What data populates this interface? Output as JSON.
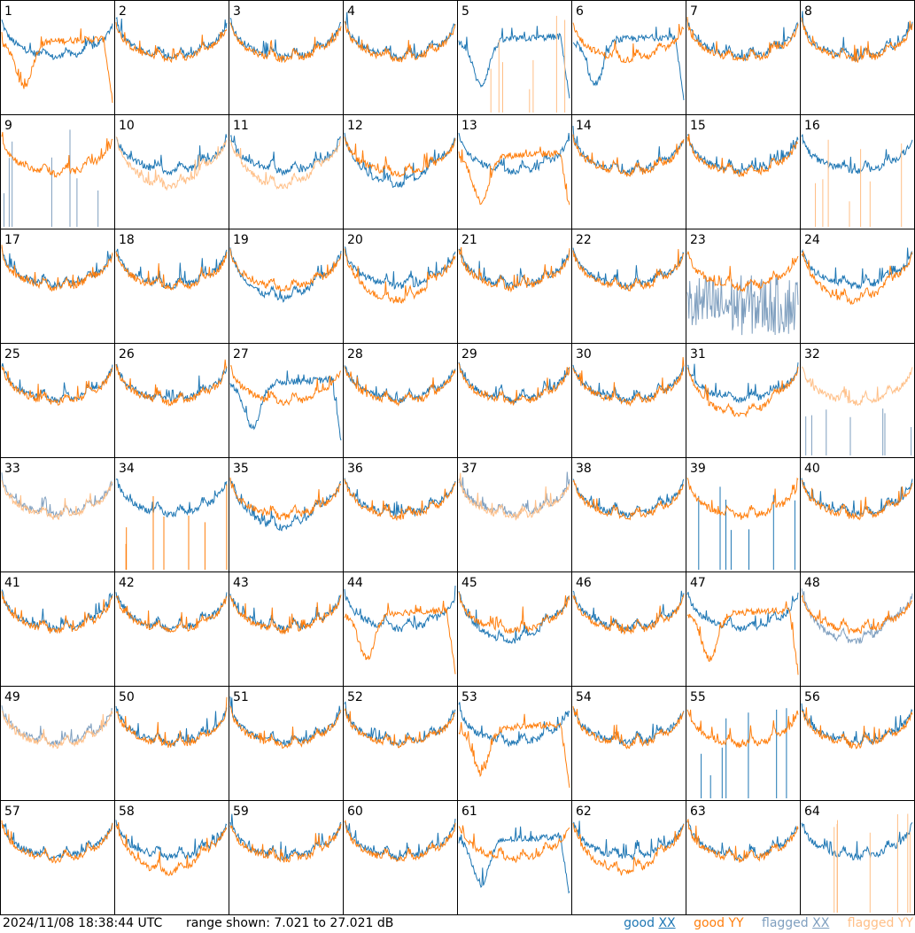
{
  "timestamp": "2024/11/08 18:38:44 UTC",
  "range_label": "range shown: 7.021 to 27.021 dB",
  "legend": [
    {
      "prefix": "good ",
      "pol": "XX",
      "color": "#1f77b4"
    },
    {
      "prefix": "good ",
      "pol": "YY",
      "color": "#ff7f0e"
    },
    {
      "prefix": "flagged ",
      "pol": "XX",
      "color": "#7f9fbf"
    },
    {
      "prefix": "flagged ",
      "pol": "YY",
      "color": "#ffbf87"
    }
  ],
  "chart_data": {
    "type": "line",
    "layout": "8x8 small multiples",
    "panel_labels": [
      "1",
      "2",
      "3",
      "4",
      "5",
      "6",
      "7",
      "8",
      "9",
      "10",
      "11",
      "12",
      "13",
      "14",
      "15",
      "16",
      "17",
      "18",
      "19",
      "20",
      "21",
      "22",
      "23",
      "24",
      "25",
      "26",
      "27",
      "28",
      "29",
      "30",
      "31",
      "32",
      "33",
      "34",
      "35",
      "36",
      "37",
      "38",
      "39",
      "40",
      "41",
      "42",
      "43",
      "44",
      "45",
      "46",
      "47",
      "48",
      "49",
      "50",
      "51",
      "52",
      "53",
      "54",
      "55",
      "56",
      "57",
      "58",
      "59",
      "60",
      "61",
      "62",
      "63",
      "64"
    ],
    "ylim": [
      7.021,
      27.021
    ],
    "yunit": "dB",
    "colors": {
      "good_xx": "#1f77b4",
      "good_yy": "#ff7f0e",
      "flagged_xx": "#7f9fbf",
      "flagged_yy": "#ffbf87"
    },
    "panels": [
      {
        "xx": {
          "shape": "hump",
          "flag": false
        },
        "yy": {
          "shape": "dip",
          "flag": false
        }
      },
      {
        "xx": {
          "shape": "normal",
          "flag": false
        },
        "yy": {
          "shape": "normal",
          "flag": false
        }
      },
      {
        "xx": {
          "shape": "normal",
          "flag": false
        },
        "yy": {
          "shape": "normal",
          "flag": false
        }
      },
      {
        "xx": {
          "shape": "normal",
          "flag": false
        },
        "yy": {
          "shape": "normal",
          "flag": false
        }
      },
      {
        "xx": {
          "shape": "dip",
          "flag": false
        },
        "yy": {
          "shape": "spikes",
          "flag": true
        }
      },
      {
        "xx": {
          "shape": "dip",
          "flag": false
        },
        "yy": {
          "shape": "normal",
          "flag": false
        }
      },
      {
        "xx": {
          "shape": "normal",
          "flag": false
        },
        "yy": {
          "shape": "normal",
          "flag": false
        }
      },
      {
        "xx": {
          "shape": "normal",
          "flag": false
        },
        "yy": {
          "shape": "normal",
          "flag": false
        }
      },
      {
        "xx": {
          "shape": "spikes",
          "flag": true
        },
        "yy": {
          "shape": "normal",
          "flag": false
        }
      },
      {
        "xx": {
          "shape": "normal",
          "flag": false
        },
        "yy": {
          "shape": "low",
          "flag": true
        }
      },
      {
        "xx": {
          "shape": "normal",
          "flag": false
        },
        "yy": {
          "shape": "low",
          "flag": true
        }
      },
      {
        "xx": {
          "shape": "low",
          "flag": false
        },
        "yy": {
          "shape": "normal",
          "flag": false
        }
      },
      {
        "xx": {
          "shape": "normal",
          "flag": false
        },
        "yy": {
          "shape": "dip",
          "flag": false
        }
      },
      {
        "xx": {
          "shape": "normal",
          "flag": false
        },
        "yy": {
          "shape": "normal",
          "flag": false
        }
      },
      {
        "xx": {
          "shape": "normal",
          "flag": false
        },
        "yy": {
          "shape": "normal",
          "flag": false
        }
      },
      {
        "xx": {
          "shape": "normal",
          "flag": false
        },
        "yy": {
          "shape": "spikes",
          "flag": true
        }
      },
      {
        "xx": {
          "shape": "normal",
          "flag": false
        },
        "yy": {
          "shape": "normal",
          "flag": false
        }
      },
      {
        "xx": {
          "shape": "normal",
          "flag": false
        },
        "yy": {
          "shape": "normal",
          "flag": false
        }
      },
      {
        "xx": {
          "shape": "low",
          "flag": false
        },
        "yy": {
          "shape": "normal",
          "flag": false
        }
      },
      {
        "xx": {
          "shape": "normal",
          "flag": false
        },
        "yy": {
          "shape": "low",
          "flag": false
        }
      },
      {
        "xx": {
          "shape": "normal",
          "flag": false
        },
        "yy": {
          "shape": "normal",
          "flag": false
        }
      },
      {
        "xx": {
          "shape": "normal",
          "flag": false
        },
        "yy": {
          "shape": "normal",
          "flag": false
        }
      },
      {
        "xx": {
          "shape": "noise",
          "flag": true
        },
        "yy": {
          "shape": "normal",
          "flag": false
        }
      },
      {
        "xx": {
          "shape": "normal",
          "flag": false
        },
        "yy": {
          "shape": "low",
          "flag": false
        }
      },
      {
        "xx": {
          "shape": "normal",
          "flag": false
        },
        "yy": {
          "shape": "normal",
          "flag": false
        }
      },
      {
        "xx": {
          "shape": "normal",
          "flag": false
        },
        "yy": {
          "shape": "normal",
          "flag": false
        }
      },
      {
        "xx": {
          "shape": "dip",
          "flag": false
        },
        "yy": {
          "shape": "normal",
          "flag": false
        }
      },
      {
        "xx": {
          "shape": "normal",
          "flag": false
        },
        "yy": {
          "shape": "normal",
          "flag": false
        }
      },
      {
        "xx": {
          "shape": "normal",
          "flag": false
        },
        "yy": {
          "shape": "normal",
          "flag": false
        }
      },
      {
        "xx": {
          "shape": "normal",
          "flag": false
        },
        "yy": {
          "shape": "normal",
          "flag": false
        }
      },
      {
        "xx": {
          "shape": "normal",
          "flag": false
        },
        "yy": {
          "shape": "low",
          "flag": false
        }
      },
      {
        "xx": {
          "shape": "spikes",
          "flag": true
        },
        "yy": {
          "shape": "normal",
          "flag": true
        }
      },
      {
        "xx": {
          "shape": "normal",
          "flag": true
        },
        "yy": {
          "shape": "normal",
          "flag": true
        }
      },
      {
        "xx": {
          "shape": "normal",
          "flag": false
        },
        "yy": {
          "shape": "spikes",
          "flag": false
        }
      },
      {
        "xx": {
          "shape": "low",
          "flag": false
        },
        "yy": {
          "shape": "normal",
          "flag": false
        }
      },
      {
        "xx": {
          "shape": "normal",
          "flag": false
        },
        "yy": {
          "shape": "normal",
          "flag": false
        }
      },
      {
        "xx": {
          "shape": "normal",
          "flag": true
        },
        "yy": {
          "shape": "normal",
          "flag": true
        }
      },
      {
        "xx": {
          "shape": "normal",
          "flag": false
        },
        "yy": {
          "shape": "normal",
          "flag": false
        }
      },
      {
        "xx": {
          "shape": "spikes",
          "flag": false
        },
        "yy": {
          "shape": "normal",
          "flag": false
        }
      },
      {
        "xx": {
          "shape": "normal",
          "flag": false
        },
        "yy": {
          "shape": "normal",
          "flag": false
        }
      },
      {
        "xx": {
          "shape": "normal",
          "flag": false
        },
        "yy": {
          "shape": "normal",
          "flag": false
        }
      },
      {
        "xx": {
          "shape": "normal",
          "flag": false
        },
        "yy": {
          "shape": "normal",
          "flag": false
        }
      },
      {
        "xx": {
          "shape": "normal",
          "flag": false
        },
        "yy": {
          "shape": "normal",
          "flag": false
        }
      },
      {
        "xx": {
          "shape": "normal",
          "flag": false
        },
        "yy": {
          "shape": "dip",
          "flag": false
        }
      },
      {
        "xx": {
          "shape": "low",
          "flag": false
        },
        "yy": {
          "shape": "normal",
          "flag": false
        }
      },
      {
        "xx": {
          "shape": "normal",
          "flag": false
        },
        "yy": {
          "shape": "normal",
          "flag": false
        }
      },
      {
        "xx": {
          "shape": "normal",
          "flag": false
        },
        "yy": {
          "shape": "dip",
          "flag": false
        }
      },
      {
        "xx": {
          "shape": "low",
          "flag": true
        },
        "yy": {
          "shape": "normal",
          "flag": false
        }
      },
      {
        "xx": {
          "shape": "normal",
          "flag": true
        },
        "yy": {
          "shape": "normal",
          "flag": true
        }
      },
      {
        "xx": {
          "shape": "normal",
          "flag": false
        },
        "yy": {
          "shape": "normal",
          "flag": false
        }
      },
      {
        "xx": {
          "shape": "normal",
          "flag": false
        },
        "yy": {
          "shape": "normal",
          "flag": false
        }
      },
      {
        "xx": {
          "shape": "normal",
          "flag": false
        },
        "yy": {
          "shape": "normal",
          "flag": false
        }
      },
      {
        "xx": {
          "shape": "normal",
          "flag": false
        },
        "yy": {
          "shape": "dip",
          "flag": false
        }
      },
      {
        "xx": {
          "shape": "normal",
          "flag": false
        },
        "yy": {
          "shape": "normal",
          "flag": false
        }
      },
      {
        "xx": {
          "shape": "spikes",
          "flag": false
        },
        "yy": {
          "shape": "normal",
          "flag": false
        }
      },
      {
        "xx": {
          "shape": "normal",
          "flag": false
        },
        "yy": {
          "shape": "normal",
          "flag": false
        }
      },
      {
        "xx": {
          "shape": "normal",
          "flag": false
        },
        "yy": {
          "shape": "normal",
          "flag": false
        }
      },
      {
        "xx": {
          "shape": "normal",
          "flag": false
        },
        "yy": {
          "shape": "low",
          "flag": false
        }
      },
      {
        "xx": {
          "shape": "normal",
          "flag": false
        },
        "yy": {
          "shape": "normal",
          "flag": false
        }
      },
      {
        "xx": {
          "shape": "normal",
          "flag": false
        },
        "yy": {
          "shape": "normal",
          "flag": false
        }
      },
      {
        "xx": {
          "shape": "dip",
          "flag": false
        },
        "yy": {
          "shape": "normal",
          "flag": false
        }
      },
      {
        "xx": {
          "shape": "normal",
          "flag": false
        },
        "yy": {
          "shape": "low",
          "flag": false
        }
      },
      {
        "xx": {
          "shape": "normal",
          "flag": false
        },
        "yy": {
          "shape": "normal",
          "flag": false
        }
      },
      {
        "xx": {
          "shape": "normal",
          "flag": false
        },
        "yy": {
          "shape": "spikes",
          "flag": true
        }
      }
    ]
  }
}
